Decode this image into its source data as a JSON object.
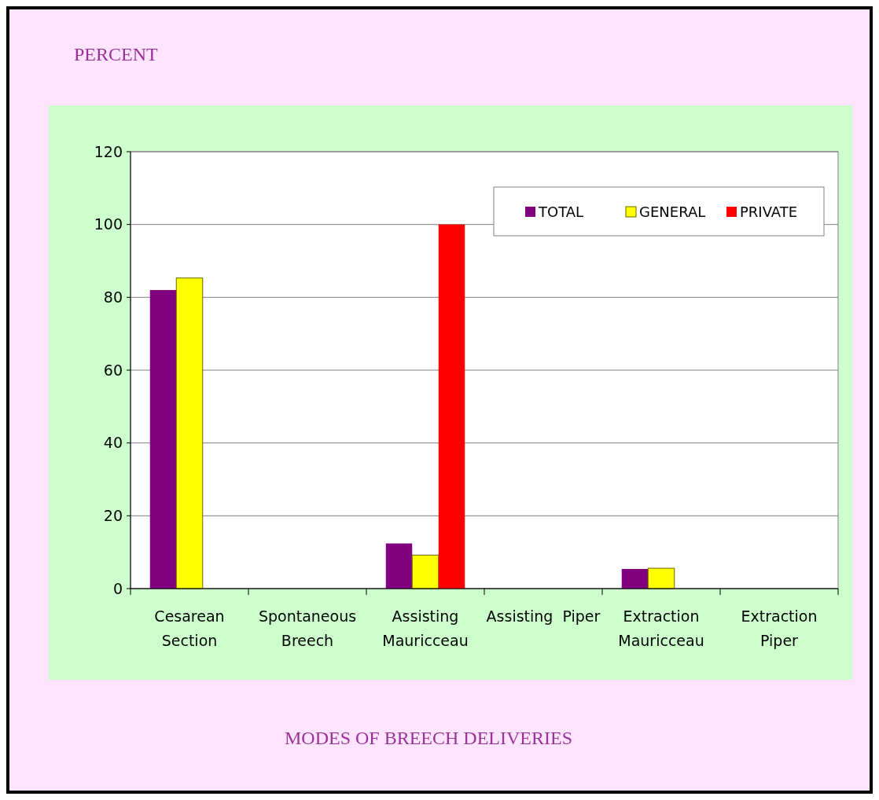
{
  "chart_data": {
    "type": "bar",
    "ylabel": "PERCENT",
    "xlabel": "MODES OF BREECH DELIVERIES",
    "categories": [
      "Cesarean Section",
      "Spontaneous Breech",
      "Assisting Mauricceau",
      "Assisting  Piper",
      "Extraction Mauricceau",
      "Extraction Piper"
    ],
    "series": [
      {
        "name": "TOTAL",
        "color": "#800080",
        "values": [
          82,
          0,
          12.4,
          0,
          5.4,
          0
        ]
      },
      {
        "name": "GENERAL",
        "color": "#ffff00",
        "values": [
          85.3,
          0,
          9.2,
          0,
          5.6,
          0
        ]
      },
      {
        "name": "PRIVATE",
        "color": "#ff0000",
        "values": [
          0,
          0,
          100,
          0,
          0,
          0
        ]
      }
    ],
    "ylim": [
      0,
      120
    ],
    "yticks": [
      0,
      20,
      40,
      60,
      80,
      100,
      120
    ],
    "grid": "y",
    "legend": "top right"
  }
}
